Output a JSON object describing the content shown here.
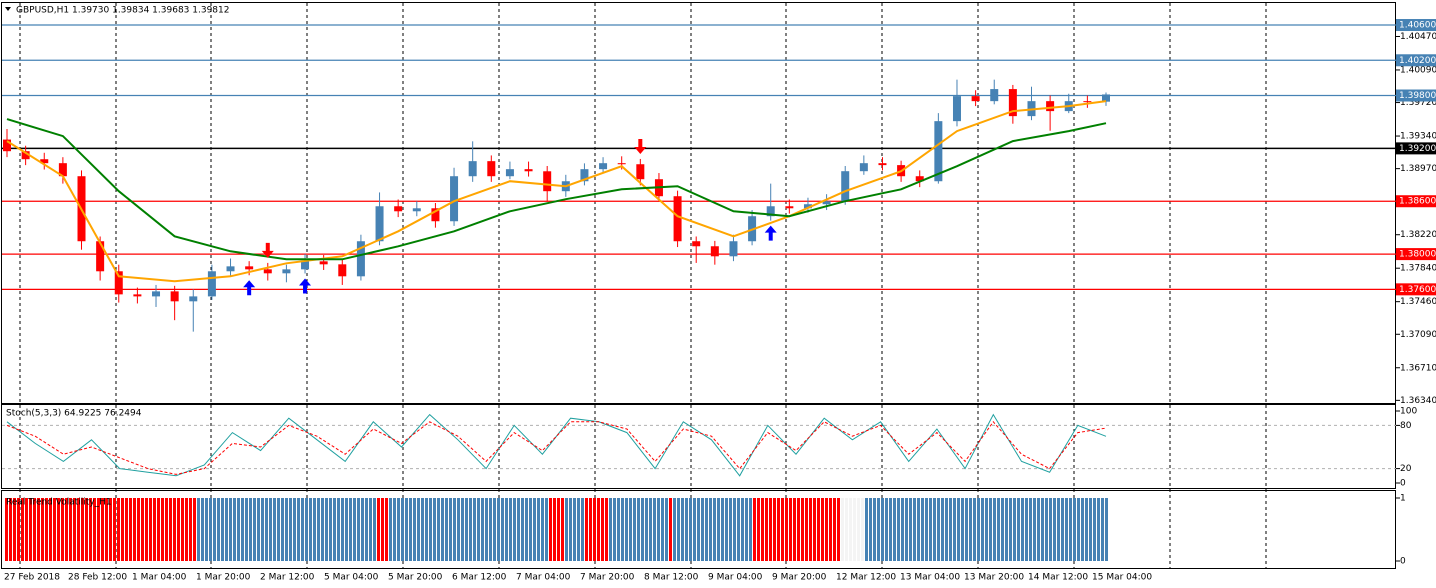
{
  "chart_data": [
    {
      "type": "candlestick",
      "title": "GBPUSD,H1  1.39730 1.39834 1.39683 1.39812",
      "open": [
        1.393,
        1.39168,
        1.39077,
        1.39032,
        1.38884,
        1.38146,
        1.37805,
        1.37543,
        1.3752,
        1.37577,
        1.37464,
        1.3752,
        1.37805,
        1.37861,
        1.37827,
        1.37782,
        1.37827,
        1.37918,
        1.37884,
        1.37748,
        1.38146,
        1.38543,
        1.38486,
        1.3852,
        1.38373,
        1.38884,
        1.39055,
        1.38884,
        1.38964,
        1.3894,
        1.38714,
        1.38827,
        1.38964,
        1.39032,
        1.3902,
        1.3885,
        1.38657,
        1.38146,
        1.38089,
        1.37975,
        1.38146,
        1.3843,
        1.38543,
        1.3852,
        1.38566,
        1.386,
        1.38941,
        1.39032,
        1.3901,
        1.38884,
        1.38827,
        1.39509,
        1.39793,
        1.39736,
        1.39873,
        1.39566,
        1.39736,
        1.39623,
        1.39736,
        1.3973
      ],
      "high": [
        1.3942,
        1.3923,
        1.3915,
        1.391,
        1.3895,
        1.382,
        1.3788,
        1.3762,
        1.3765,
        1.3764,
        1.376,
        1.3788,
        1.3795,
        1.3792,
        1.379,
        1.3788,
        1.38,
        1.3799,
        1.3795,
        1.3822,
        1.387,
        1.3862,
        1.386,
        1.3858,
        1.3898,
        1.3928,
        1.3912,
        1.3905,
        1.3905,
        1.39,
        1.389,
        1.3903,
        1.391,
        1.3911,
        1.3908,
        1.3892,
        1.3872,
        1.382,
        1.3815,
        1.3822,
        1.385,
        1.388,
        1.3862,
        1.3864,
        1.3868,
        1.39,
        1.3912,
        1.391,
        1.3906,
        1.3895,
        1.396,
        1.3998,
        1.3986,
        1.3998,
        1.3992,
        1.399,
        1.398,
        1.3982,
        1.398,
        1.39834
      ],
      "low": [
        1.391,
        1.3901,
        1.3896,
        1.388,
        1.3805,
        1.377,
        1.3745,
        1.3744,
        1.374,
        1.3725,
        1.3712,
        1.3748,
        1.3775,
        1.3776,
        1.377,
        1.3768,
        1.3778,
        1.3782,
        1.3765,
        1.377,
        1.381,
        1.3842,
        1.3843,
        1.383,
        1.3832,
        1.3882,
        1.3882,
        1.3885,
        1.3888,
        1.386,
        1.3865,
        1.3878,
        1.3892,
        1.3896,
        1.3878,
        1.386,
        1.3808,
        1.379,
        1.3788,
        1.3792,
        1.381,
        1.3838,
        1.3846,
        1.3847,
        1.385,
        1.3856,
        1.389,
        1.3895,
        1.3882,
        1.3876,
        1.388,
        1.3945,
        1.3968,
        1.397,
        1.3948,
        1.3952,
        1.394,
        1.396,
        1.3966,
        1.39683
      ],
      "close": [
        1.39168,
        1.39077,
        1.39032,
        1.38884,
        1.38146,
        1.37805,
        1.37543,
        1.3752,
        1.37577,
        1.37464,
        1.3752,
        1.37805,
        1.37861,
        1.37827,
        1.37782,
        1.37827,
        1.37918,
        1.37884,
        1.37748,
        1.38146,
        1.38543,
        1.38486,
        1.3852,
        1.38373,
        1.38884,
        1.39055,
        1.38884,
        1.38964,
        1.3894,
        1.38714,
        1.38827,
        1.38964,
        1.39032,
        1.3902,
        1.3885,
        1.38657,
        1.38146,
        1.38089,
        1.37975,
        1.38146,
        1.3843,
        1.38543,
        1.3852,
        1.38566,
        1.386,
        1.38941,
        1.39032,
        1.3901,
        1.38884,
        1.38827,
        1.39509,
        1.39793,
        1.39736,
        1.39873,
        1.39566,
        1.39736,
        1.39623,
        1.39736,
        1.3973,
        1.39812
      ],
      "up_color": "#4682b4",
      "down_color": "#ff0000",
      "lines": [
        {
          "color": "#ffa500",
          "x": [
            0,
            3,
            6,
            9,
            12,
            15,
            18,
            21,
            24,
            27,
            30,
            33,
            36,
            39,
            42,
            45,
            48,
            51,
            54,
            57,
            59
          ],
          "values": [
            1.39282,
            1.38884,
            1.37748,
            1.37691,
            1.37748,
            1.37896,
            1.37975,
            1.38259,
            1.386,
            1.38827,
            1.38771,
            1.38998,
            1.3843,
            1.38202,
            1.3843,
            1.38714,
            1.38941,
            1.39396,
            1.39623,
            1.3968,
            1.39736
          ]
        },
        {
          "color": "#008000",
          "x": [
            0,
            3,
            6,
            9,
            12,
            15,
            18,
            21,
            24,
            27,
            30,
            33,
            36,
            39,
            42,
            45,
            48,
            51,
            54,
            57,
            59
          ],
          "values": [
            1.39532,
            1.39339,
            1.38714,
            1.38202,
            1.38032,
            1.37941,
            1.37941,
            1.38089,
            1.38259,
            1.38486,
            1.38623,
            1.38736,
            1.38771,
            1.38486,
            1.3843,
            1.386,
            1.38736,
            1.38998,
            1.39282,
            1.39396,
            1.39486
          ]
        }
      ],
      "buy_signals": [
        13,
        16,
        41
      ],
      "sell_signals": [
        14,
        34
      ],
      "levels": [
        {
          "value": 1.406,
          "label": "1.40600",
          "color": "#4682b4"
        },
        {
          "value": 1.402,
          "label": "1.40200",
          "color": "#4682b4"
        },
        {
          "value": 1.398,
          "label": "1.39800",
          "color": "#4682b4"
        },
        {
          "value": 1.392,
          "label": "1.39200",
          "color": "#000000"
        },
        {
          "value": 1.386,
          "label": "1.38600",
          "color": "#ff0000"
        },
        {
          "value": 1.38,
          "label": "1.38000",
          "color": "#ff0000"
        },
        {
          "value": 1.376,
          "label": "1.37600",
          "color": "#ff0000"
        }
      ],
      "ylim": [
        1.3631,
        1.4085
      ],
      "yticks": [
        {
          "value": 1.4047,
          "label": "1.40470"
        },
        {
          "value": 1.4009,
          "label": "1.40090"
        },
        {
          "value": 1.3972,
          "label": "1.39720"
        },
        {
          "value": 1.3934,
          "label": "1.39340"
        },
        {
          "value": 1.3897,
          "label": "1.38970"
        },
        {
          "value": 1.3822,
          "label": "1.38220"
        },
        {
          "value": 1.3784,
          "label": "1.37840"
        },
        {
          "value": 1.3746,
          "label": "1.37460"
        },
        {
          "value": 1.3709,
          "label": "1.37090"
        },
        {
          "value": 1.3671,
          "label": "1.36710"
        },
        {
          "value": 1.3634,
          "label": "1.36340"
        }
      ],
      "x_labels": [
        "27 Feb 2018",
        "28 Feb 12:00",
        "1 Mar 04:00",
        "1 Mar 20:00",
        "2 Mar 12:00",
        "5 Mar 04:00",
        "5 Mar 20:00",
        "6 Mar 12:00",
        "7 Mar 04:00",
        "7 Mar 20:00",
        "8 Mar 12:00",
        "9 Mar 04:00",
        "9 Mar 20:00",
        "12 Mar 12:00",
        "13 Mar 04:00",
        "13 Mar 20:00",
        "14 Mar 12:00",
        "15 Mar 04:00"
      ],
      "grid": true
    },
    {
      "type": "line",
      "title": "Stoch(5,3,3) 64.9225 76.2494",
      "series": [
        {
          "color": "#20a0a0",
          "values": [
            85,
            55,
            30,
            60,
            20,
            15,
            10,
            25,
            70,
            45,
            90,
            60,
            30,
            85,
            50,
            95,
            60,
            20,
            80,
            40,
            90,
            85,
            70,
            20,
            85,
            60,
            10,
            80,
            40,
            90,
            60,
            85,
            30,
            75,
            20,
            95,
            30,
            15,
            80,
            64.9225
          ]
        },
        {
          "color": "#ff0000",
          "values": [
            80,
            65,
            40,
            50,
            35,
            20,
            12,
            20,
            55,
            50,
            80,
            65,
            40,
            75,
            55,
            85,
            65,
            30,
            70,
            45,
            85,
            85,
            75,
            30,
            75,
            65,
            20,
            70,
            45,
            85,
            65,
            80,
            40,
            70,
            30,
            85,
            40,
            20,
            70,
            76.2494
          ]
        }
      ],
      "ylim": [
        0,
        100
      ],
      "yticks": [
        100,
        80,
        20,
        0
      ],
      "levels": [
        80,
        20
      ]
    },
    {
      "type": "histogram",
      "title": "Real Trend Volatility_H1",
      "value": 1,
      "runs": [
        {
          "color": "#ff0000",
          "count": 48
        },
        {
          "color": "#4682b4",
          "count": 45
        },
        {
          "color": "#ff0000",
          "count": 3
        },
        {
          "color": "#4682b4",
          "count": 40
        },
        {
          "color": "#ff0000",
          "count": 4
        },
        {
          "color": "#4682b4",
          "count": 5
        },
        {
          "color": "#ff0000",
          "count": 6
        },
        {
          "color": "#4682b4",
          "count": 15
        },
        {
          "color": "#ff0000",
          "count": 1
        },
        {
          "color": "#4682b4",
          "count": 20
        },
        {
          "color": "#ff0000",
          "count": 22
        },
        {
          "color": "#f4f4f4",
          "count": 6
        },
        {
          "color": "#4682b4",
          "count": 61
        }
      ],
      "ylim": [
        0,
        1
      ],
      "yticks": [
        1,
        0
      ]
    }
  ]
}
